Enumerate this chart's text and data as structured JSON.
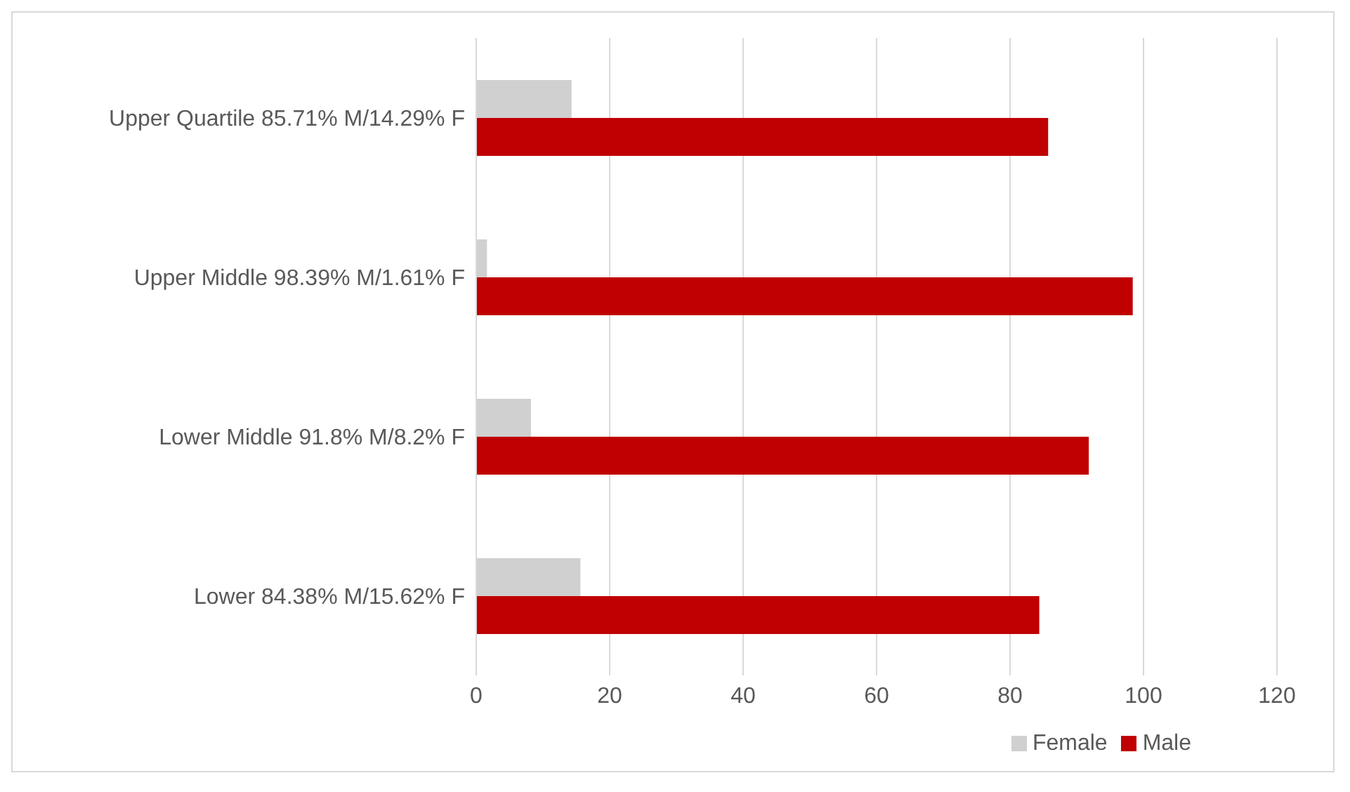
{
  "chart_data": {
    "type": "bar",
    "orientation": "horizontal",
    "categories": [
      "Upper Quartile 85.71% M/14.29% F",
      "Upper Middle 98.39% M/1.61% F",
      "Lower Middle 91.8% M/8.2% F",
      "Lower 84.38% M/15.62% F"
    ],
    "series": [
      {
        "name": "Female",
        "color": "#d0d0d0",
        "values": [
          14.29,
          1.61,
          8.2,
          15.62
        ]
      },
      {
        "name": "Male",
        "color": "#c00000",
        "values": [
          85.71,
          98.39,
          91.8,
          84.38
        ]
      }
    ],
    "xlim": [
      0,
      120
    ],
    "xticks": [
      0,
      20,
      40,
      60,
      80,
      100,
      120
    ],
    "grid": "x",
    "legend": "bottom"
  }
}
